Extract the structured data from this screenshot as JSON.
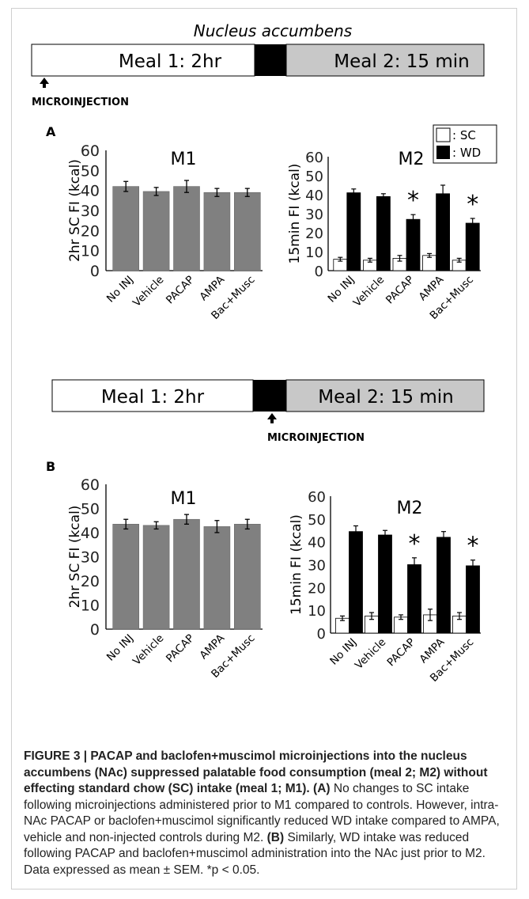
{
  "panel_a_header": "Nucleus accumbens",
  "timelines": [
    {
      "meal1": "Meal 1: 2hr",
      "meal2": "Meal 2: 15 min",
      "injection_label": "MICROINJECTION"
    },
    {
      "meal1": "Meal 1: 2hr",
      "meal2": "Meal 2: 15 min",
      "injection_label": "MICROINJECTION"
    }
  ],
  "panel_labels": [
    "A",
    "B"
  ],
  "legend": [
    {
      "key": "SC",
      "label": ": SC",
      "color": "#ffffff"
    },
    {
      "key": "WD",
      "label": ": WD",
      "color": "#000000"
    }
  ],
  "colors": {
    "m1_bar": "#808080",
    "wd_bar": "#000000",
    "sc_bar": "#ffffff",
    "meal2_fill": "#c8c8c8",
    "injection_block": "#000000"
  },
  "chart_data": [
    {
      "panel": "A",
      "type": "bar",
      "title": "M1",
      "xlabel": "",
      "ylabel": "2hr SC FI (kcal)",
      "ylim": [
        0,
        60
      ],
      "yticks": [
        0,
        10,
        20,
        30,
        40,
        50,
        60
      ],
      "categories": [
        "No INJ",
        "Vehicle",
        "PACAP",
        "AMPA",
        "Bac+Musc"
      ],
      "series": [
        {
          "values": [
            42,
            39.5,
            42,
            39,
            39
          ],
          "errors": [
            2.5,
            2,
            3,
            2,
            2
          ]
        }
      ],
      "significant": [
        false,
        false,
        false,
        false,
        false
      ]
    },
    {
      "panel": "A",
      "type": "bar",
      "title": "M2",
      "xlabel": "",
      "ylabel": "15min FI (kcal)",
      "ylim": [
        0,
        60
      ],
      "yticks": [
        0,
        10,
        20,
        30,
        40,
        50,
        60
      ],
      "categories": [
        "No INJ",
        "Vehicle",
        "PACAP",
        "AMPA",
        "Bac+Musc"
      ],
      "series": [
        {
          "name": "SC",
          "values": [
            6,
            5.5,
            6.5,
            8,
            5.5
          ],
          "errors": [
            1,
            1,
            1.5,
            1,
            1
          ]
        },
        {
          "name": "WD",
          "values": [
            41,
            39,
            27,
            40.5,
            25
          ],
          "errors": [
            2,
            1.5,
            2.5,
            4.5,
            2.5
          ]
        }
      ],
      "significant": [
        false,
        false,
        true,
        false,
        true
      ]
    },
    {
      "panel": "B",
      "type": "bar",
      "title": "M1",
      "xlabel": "",
      "ylabel": "2hr SC FI (kcal)",
      "ylim": [
        0,
        60
      ],
      "yticks": [
        0,
        10,
        20,
        30,
        40,
        50,
        60
      ],
      "categories": [
        "No INJ",
        "Vehicle",
        "PACAP",
        "AMPA",
        "Bac+Musc"
      ],
      "series": [
        {
          "values": [
            43.5,
            43,
            45.5,
            42.5,
            43.5
          ],
          "errors": [
            2,
            1.5,
            2,
            2.5,
            2
          ]
        }
      ],
      "significant": [
        false,
        false,
        false,
        false,
        false
      ]
    },
    {
      "panel": "B",
      "type": "bar",
      "title": "M2",
      "xlabel": "",
      "ylabel": "15min FI (kcal)",
      "ylim": [
        0,
        60
      ],
      "yticks": [
        0,
        10,
        20,
        30,
        40,
        50,
        60
      ],
      "categories": [
        "No INJ",
        "Vehicle",
        "PACAP",
        "AMPA",
        "Bac+Musc"
      ],
      "series": [
        {
          "name": "SC",
          "values": [
            6.5,
            7.5,
            7,
            8,
            7.5
          ],
          "errors": [
            1,
            1.5,
            1,
            2.5,
            1.5
          ]
        },
        {
          "name": "WD",
          "values": [
            44.5,
            43,
            30,
            42,
            29.5
          ],
          "errors": [
            2.5,
            2,
            3,
            2.5,
            2.5
          ]
        }
      ],
      "significant": [
        false,
        false,
        true,
        false,
        true
      ]
    }
  ],
  "significance_marker": "*",
  "caption": {
    "title": "FIGURE 3 | PACAP and baclofen+muscimol microinjections into the nucleus accumbens (NAc) suppressed palatable food consumption (meal 2; M2) without effecting standard chow (SC) intake (meal 1; M1).",
    "a_label": "(A)",
    "a_text": " No changes to SC intake following microinjections administered prior to M1 compared to controls. However, intra-NAc PACAP or baclofen+muscimol significantly reduced WD intake compared to AMPA, vehicle and non-injected controls during M2.",
    "b_label": "(B)",
    "b_text": " Similarly, WD intake was reduced following PACAP and baclofen+muscimol administration into the NAc just prior to M2. Data expressed as mean ± SEM. *p < 0.05."
  }
}
